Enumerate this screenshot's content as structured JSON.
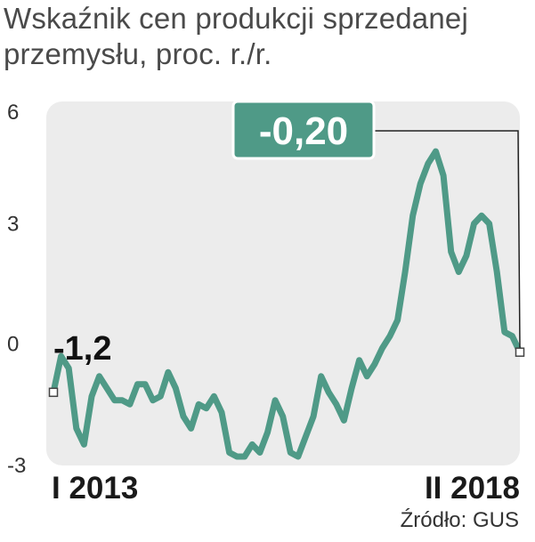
{
  "title_lines": [
    "Wskaźnik cen produkcji sprzedanej",
    "przemysłu, proc. r./r."
  ],
  "source": "Źródło: GUS",
  "colors": {
    "line": "#4f9a87",
    "panel": "#ececec",
    "callout_bg": "#4f9a87",
    "callout_border": "#ffffff"
  },
  "chart_data": {
    "type": "line",
    "title": "Wskaźnik cen produkcji sprzedanej przemysłu, proc. r./r.",
    "xlabel": "",
    "ylabel": "",
    "ylim": [
      -3,
      6
    ],
    "yticks": [
      6,
      3,
      0,
      -3
    ],
    "ytick_labels": [
      "6",
      "3",
      "0",
      "-3"
    ],
    "x_tick_labels": [
      "I 2013",
      "II 2018"
    ],
    "start_annotation": "-1,2",
    "end_annotation": "-0,20",
    "grid": false,
    "legend": "none",
    "series": [
      {
        "values": [
          -1.2,
          -0.3,
          -0.6,
          -2.1,
          -2.5,
          -1.3,
          -0.8,
          -1.1,
          -1.4,
          -1.4,
          -1.5,
          -1.0,
          -1.0,
          -1.4,
          -1.3,
          -0.7,
          -1.1,
          -1.8,
          -2.1,
          -1.5,
          -1.6,
          -1.3,
          -1.7,
          -2.7,
          -2.8,
          -2.8,
          -2.5,
          -2.7,
          -2.2,
          -1.4,
          -1.8,
          -2.7,
          -2.8,
          -2.3,
          -1.8,
          -0.8,
          -1.2,
          -1.5,
          -1.9,
          -1.1,
          -0.4,
          -0.8,
          -0.5,
          -0.1,
          0.2,
          0.6,
          1.8,
          3.2,
          4.0,
          4.5,
          4.8,
          4.2,
          2.3,
          1.8,
          2.2,
          3.0,
          3.2,
          3.0,
          1.8,
          0.3,
          0.2,
          -0.2
        ]
      }
    ]
  }
}
